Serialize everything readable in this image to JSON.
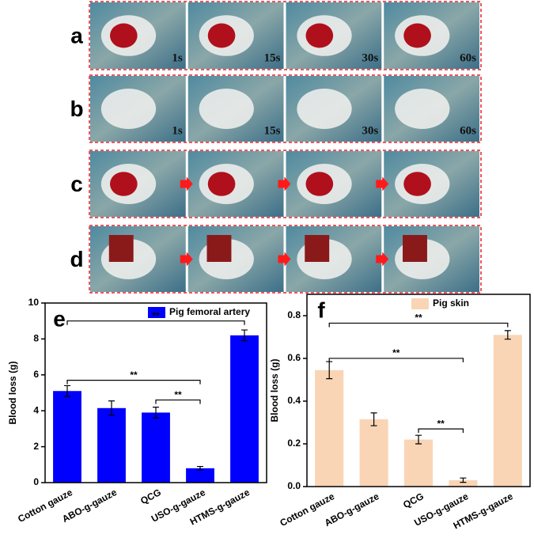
{
  "photo_panels": [
    {
      "label": "a",
      "times": [
        "1s",
        "15s",
        "30s",
        "60s"
      ]
    },
    {
      "label": "b",
      "times": [
        "1s",
        "15s",
        "30s",
        "60s"
      ]
    },
    {
      "label": "c"
    },
    {
      "label": "d"
    }
  ],
  "chart_data": [
    {
      "type": "bar",
      "panel_label": "e",
      "ylabel": "Blood loss (g)",
      "categories": [
        "Cotton gauze",
        "ABO-g-gauze",
        "QCG",
        "USO-g-gauze",
        "HTMS-g-gauze"
      ],
      "series": [
        {
          "name": "Pig femoral artery",
          "color": "#0000ff",
          "values": [
            5.1,
            4.15,
            3.9,
            0.8,
            8.2
          ],
          "errors": [
            0.3,
            0.4,
            0.3,
            0.1,
            0.3
          ]
        }
      ],
      "ylim": [
        0,
        10
      ],
      "yticks": [
        0,
        2,
        4,
        6,
        8,
        10
      ],
      "legend": "upper right",
      "annotations": [
        "**",
        "**",
        "**"
      ]
    },
    {
      "type": "bar",
      "panel_label": "f",
      "ylabel": "Blood loss (g)",
      "categories": [
        "Cotton gauze",
        "ABO-g-gauze",
        "QCG",
        "USO-g-gauze",
        "HTMS-g-gauze"
      ],
      "series": [
        {
          "name": "Pig skin",
          "color": "#f9d5b5",
          "values": [
            0.545,
            0.315,
            0.22,
            0.03,
            0.71
          ],
          "errors": [
            0.04,
            0.03,
            0.02,
            0.01,
            0.02
          ]
        }
      ],
      "ylim": [
        0,
        0.9
      ],
      "yticks": [
        {
          "value": 0,
          "label": "0.0"
        },
        {
          "value": 0.2,
          "label": "0.2"
        },
        {
          "value": 0.4,
          "label": "0.4"
        },
        {
          "value": 0.6,
          "label": "0.6"
        },
        {
          "value": 0.8,
          "label": "0.8"
        }
      ],
      "legend": "upper right",
      "annotations": [
        "**",
        "**",
        "**"
      ]
    }
  ]
}
